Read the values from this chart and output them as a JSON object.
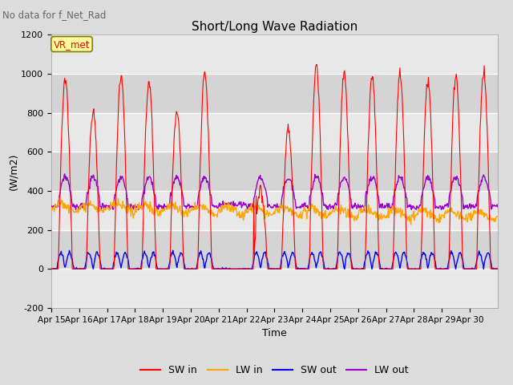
{
  "title": "Short/Long Wave Radiation",
  "subtitle": "No data for f_Net_Rad",
  "ylabel": "(W/m2)",
  "xlabel": "Time",
  "ylim": [
    -200,
    1200
  ],
  "yticks": [
    -200,
    0,
    200,
    400,
    600,
    800,
    1000,
    1200
  ],
  "legend_label": "VR_met",
  "colors": {
    "SW_in": "#FF0000",
    "LW_in": "#FFA500",
    "SW_out": "#0000FF",
    "LW_out": "#9900CC"
  },
  "day_labels": [
    "Apr 15",
    "Apr 16",
    "Apr 17",
    "Apr 18",
    "Apr 19",
    "Apr 20",
    "Apr 21",
    "Apr 22",
    "Apr 23",
    "Apr 24",
    "Apr 25",
    "Apr 26",
    "Apr 27",
    "Apr 28",
    "Apr 29",
    "Apr 30"
  ],
  "bg_color": "#DCDCDC",
  "band_colors": [
    "#E8E8E8",
    "#D0D0D0"
  ]
}
